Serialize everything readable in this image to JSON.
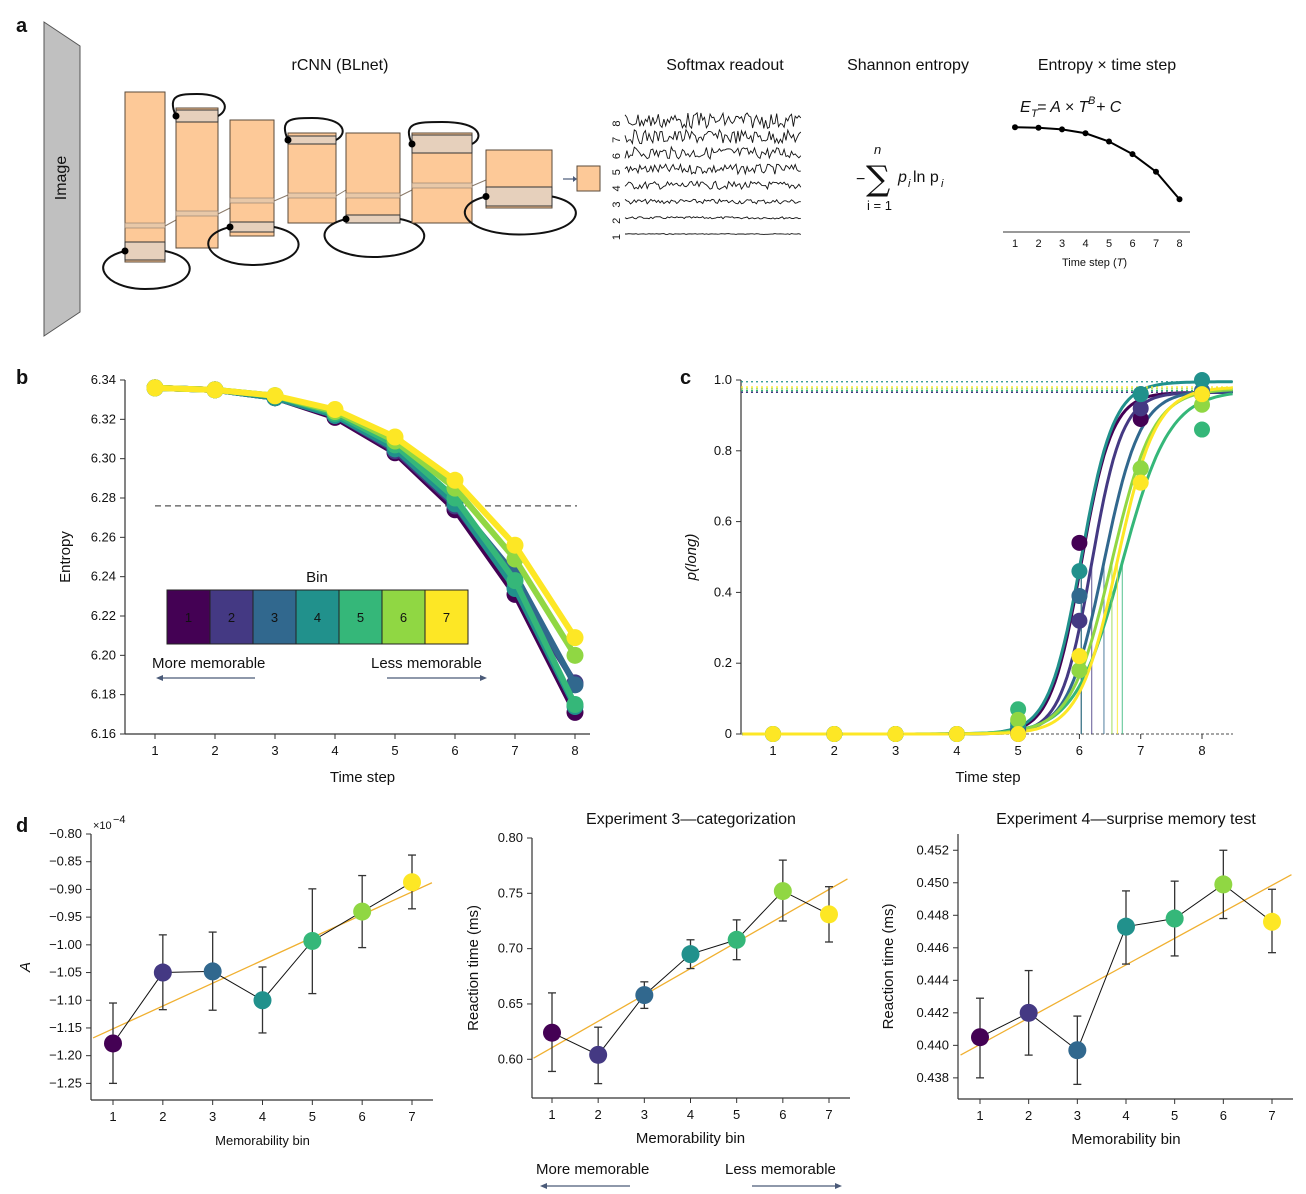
{
  "panel_letters": {
    "a": "a",
    "b": "b",
    "c": "c",
    "d": "d"
  },
  "panel_a": {
    "image_label": "Image",
    "rcnn_title": "rCNN (BLnet)",
    "softmax_title": "Softmax readout",
    "softmax_row_labels": [
      "1",
      "2",
      "3",
      "4",
      "5",
      "6",
      "7",
      "8"
    ],
    "entropy_title": "Shannon entropy",
    "entropy_formula": {
      "minus": "−",
      "sum_upper": "n",
      "sum_lower": "i = 1",
      "body": "p",
      "sub": "i",
      "ln": " ln p",
      "sub2": "i"
    },
    "entropy_time_title": "Entropy × time step",
    "fit_formula": {
      "E": "E",
      "T_sub": "T",
      "eq": " = A × T",
      "B": "B",
      "rest": " + C"
    },
    "mini_xlabel": "Time step (",
    "mini_xlabel_T": "T",
    "mini_xlabel_end": ")",
    "mini_ticks": [
      "1",
      "2",
      "3",
      "4",
      "5",
      "6",
      "7",
      "8"
    ],
    "mini_values": [
      6.336,
      6.335,
      6.332,
      6.325,
      6.31,
      6.287,
      6.255,
      6.205
    ]
  },
  "colors": {
    "bins": [
      "#440154",
      "#443983",
      "#31688e",
      "#21918c",
      "#35b779",
      "#90d743",
      "#fde725"
    ],
    "fit_line": "#f0b030",
    "layer_fill": "#fdc998",
    "layer_band": "#e6d0bc",
    "image_plane": "#c0c0c0",
    "arrow": "#4a5a78"
  },
  "chart_data": [
    {
      "id": "b",
      "type": "line",
      "title": "",
      "xlabel": "Time step",
      "ylabel": "Entropy",
      "x": [
        1,
        2,
        3,
        4,
        5,
        6,
        7,
        8
      ],
      "xticks": [
        "1",
        "2",
        "3",
        "4",
        "5",
        "6",
        "7",
        "8"
      ],
      "yticks": [
        "6.16",
        "6.18",
        "6.20",
        "6.22",
        "6.24",
        "6.26",
        "6.28",
        "6.30",
        "6.32",
        "6.34"
      ],
      "ylim": [
        6.16,
        6.34
      ],
      "threshold": 6.276,
      "legend": {
        "title": "Bin",
        "labels": [
          "1",
          "2",
          "3",
          "4",
          "5",
          "6",
          "7"
        ],
        "placement": "center-left",
        "more": "More memorable",
        "less": "Less memorable"
      },
      "series": [
        {
          "name": "1",
          "values": [
            6.336,
            6.335,
            6.331,
            6.321,
            6.303,
            6.274,
            6.231,
            6.171
          ]
        },
        {
          "name": "2",
          "values": [
            6.336,
            6.335,
            6.331,
            6.322,
            6.304,
            6.276,
            6.235,
            6.186
          ]
        },
        {
          "name": "3",
          "values": [
            6.336,
            6.335,
            6.331,
            6.322,
            6.305,
            6.278,
            6.241,
            6.185
          ]
        },
        {
          "name": "4",
          "values": [
            6.336,
            6.335,
            6.331,
            6.322,
            6.305,
            6.277,
            6.234,
            6.174
          ]
        },
        {
          "name": "5",
          "values": [
            6.336,
            6.335,
            6.332,
            6.323,
            6.307,
            6.28,
            6.238,
            6.175
          ]
        },
        {
          "name": "6",
          "values": [
            6.336,
            6.335,
            6.332,
            6.324,
            6.309,
            6.285,
            6.249,
            6.2
          ]
        },
        {
          "name": "7",
          "values": [
            6.336,
            6.335,
            6.332,
            6.325,
            6.311,
            6.289,
            6.256,
            6.209
          ]
        }
      ]
    },
    {
      "id": "c",
      "type": "scatter",
      "xlabel": "Time step",
      "ylabel": "p(long)",
      "x": [
        1,
        2,
        3,
        4,
        5,
        6,
        7,
        8
      ],
      "xticks": [
        "1",
        "2",
        "3",
        "4",
        "5",
        "6",
        "7",
        "8"
      ],
      "yticks": [
        "0",
        "0.2",
        "0.4",
        "0.6",
        "0.8",
        "1.0"
      ],
      "xlim": [
        0.5,
        8.5
      ],
      "ylim": [
        0,
        1.0
      ],
      "series": [
        {
          "name": "1",
          "values": [
            0,
            0,
            0,
            0,
            0.0,
            0.54,
            0.89,
            0.96
          ],
          "midpoint": 6.03,
          "slope": 4.0,
          "asymptote": 0.965
        },
        {
          "name": "2",
          "values": [
            0,
            0,
            0,
            0,
            0.01,
            0.32,
            0.92,
            0.96
          ],
          "midpoint": 6.2,
          "slope": 4.0,
          "asymptote": 0.965
        },
        {
          "name": "3",
          "values": [
            0,
            0,
            0,
            0,
            0.02,
            0.39,
            0.96,
            0.97
          ],
          "midpoint": 6.4,
          "slope": 3.4,
          "asymptote": 0.97
        },
        {
          "name": "4",
          "values": [
            0,
            0,
            0,
            0,
            0.03,
            0.46,
            0.96,
            1.0
          ],
          "midpoint": 6.03,
          "slope": 3.8,
          "asymptote": 0.995
        },
        {
          "name": "5",
          "values": [
            0,
            0,
            0,
            0,
            0.07,
            0.18,
            0.75,
            0.86
          ],
          "midpoint": 6.7,
          "slope": 2.6,
          "asymptote": 0.97
        },
        {
          "name": "6",
          "values": [
            0,
            0,
            0,
            0,
            0.04,
            0.18,
            0.75,
            0.93
          ],
          "midpoint": 6.53,
          "slope": 3.0,
          "asymptote": 0.975
        },
        {
          "name": "7",
          "values": [
            0,
            0,
            0,
            0,
            0.0,
            0.22,
            0.71,
            0.96
          ],
          "midpoint": 6.62,
          "slope": 3.2,
          "asymptote": 0.98
        }
      ]
    },
    {
      "id": "d1",
      "type": "scatter",
      "title": "",
      "xlabel": "Memorability bin",
      "ylabel": "A",
      "scale_note": "×10",
      "scale_exp": "−4",
      "x": [
        1,
        2,
        3,
        4,
        5,
        6,
        7
      ],
      "xticks": [
        "1",
        "2",
        "3",
        "4",
        "5",
        "6",
        "7"
      ],
      "yticks": [
        "−1.25",
        "−1.20",
        "−1.15",
        "−1.10",
        "−1.05",
        "−1.00",
        "−0.95",
        "−0.90",
        "−0.85",
        "−0.80"
      ],
      "ylim": [
        -1.28,
        -0.8
      ],
      "values": [
        -1.178,
        -1.05,
        -1.048,
        -1.1,
        -0.993,
        -0.94,
        -0.887
      ],
      "err_low": [
        -1.25,
        -1.117,
        -1.118,
        -1.159,
        -1.088,
        -1.005,
        -0.935
      ],
      "err_high": [
        -1.105,
        -0.982,
        -0.977,
        -1.04,
        -0.899,
        -0.875,
        -0.838
      ],
      "fit": {
        "x0": 0.6,
        "y0": -1.168,
        "x1": 7.4,
        "y1": -0.888
      }
    },
    {
      "id": "d2",
      "type": "scatter",
      "title": "Experiment 3—categorization",
      "xlabel": "Memorability bin",
      "ylabel": "Reaction time (ms)",
      "x": [
        1,
        2,
        3,
        4,
        5,
        6,
        7
      ],
      "xticks": [
        "1",
        "2",
        "3",
        "4",
        "5",
        "6",
        "7"
      ],
      "yticks": [
        "0.60",
        "0.65",
        "0.70",
        "0.75",
        "0.80"
      ],
      "ylim": [
        0.565,
        0.8
      ],
      "values": [
        0.624,
        0.604,
        0.658,
        0.695,
        0.708,
        0.752,
        0.731
      ],
      "err_low": [
        0.589,
        0.578,
        0.646,
        0.682,
        0.69,
        0.725,
        0.706
      ],
      "err_high": [
        0.66,
        0.629,
        0.67,
        0.708,
        0.726,
        0.78,
        0.756
      ],
      "fit": {
        "x0": 0.6,
        "y0": 0.601,
        "x1": 7.4,
        "y1": 0.763
      },
      "more": "More memorable",
      "less": "Less memorable"
    },
    {
      "id": "d3",
      "type": "scatter",
      "title": "Experiment 4—surprise memory test",
      "xlabel": "Memorability bin",
      "ylabel": "Reaction time (ms)",
      "x": [
        1,
        2,
        3,
        4,
        5,
        6,
        7
      ],
      "xticks": [
        "1",
        "2",
        "3",
        "4",
        "5",
        "6",
        "7"
      ],
      "yticks": [
        "0.438",
        "0.440",
        "0.442",
        "0.444",
        "0.446",
        "0.448",
        "0.450",
        "0.452"
      ],
      "ylim": [
        0.4367,
        0.453
      ],
      "values": [
        0.4405,
        0.442,
        0.4397,
        0.4473,
        0.4478,
        0.4499,
        0.4476
      ],
      "err_low": [
        0.438,
        0.4394,
        0.4376,
        0.445,
        0.4455,
        0.4478,
        0.4457
      ],
      "err_high": [
        0.4429,
        0.4446,
        0.4418,
        0.4495,
        0.4501,
        0.452,
        0.4496
      ],
      "fit": {
        "x0": 0.6,
        "y0": 0.4394,
        "x1": 7.4,
        "y1": 0.4505
      }
    }
  ]
}
